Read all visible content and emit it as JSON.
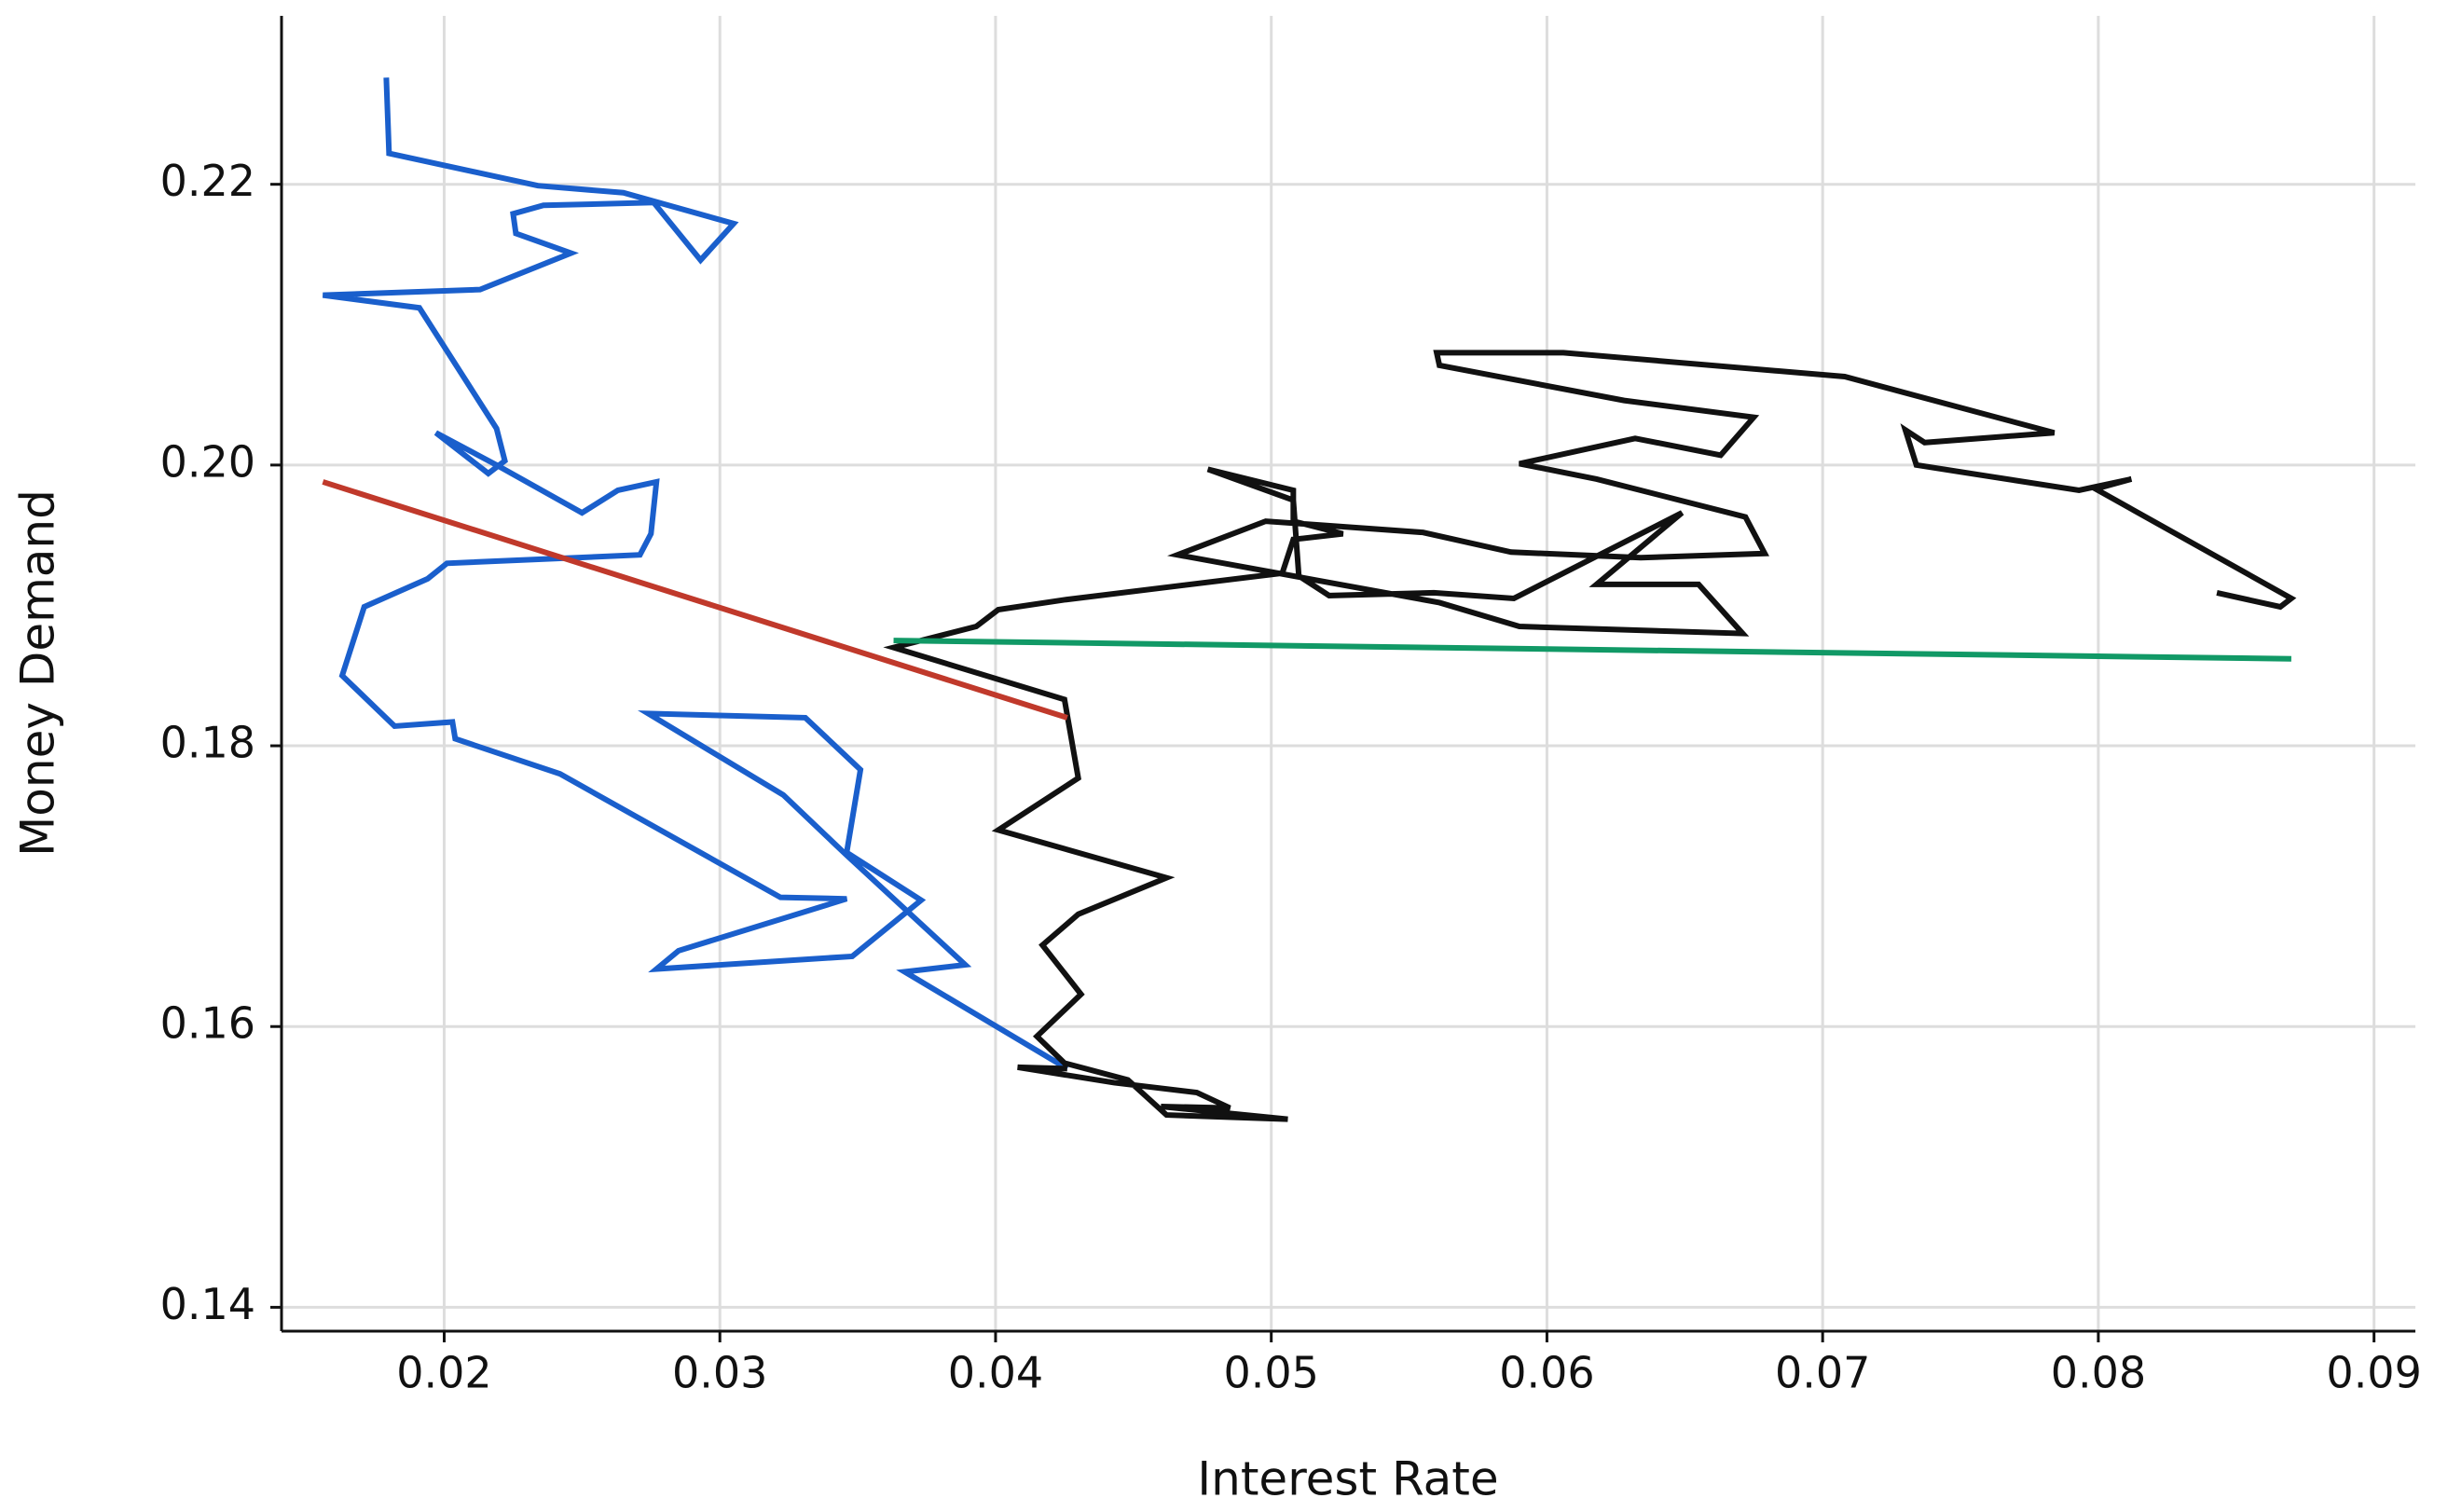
{
  "chart_data": {
    "type": "line",
    "x_label": "Interest Rate",
    "y_label": "Money Demand",
    "xlim": [
      0.0141,
      0.0915
    ],
    "ylim": [
      0.1383,
      0.232
    ],
    "xticks": [
      0.02,
      0.03,
      0.04,
      0.05,
      0.06,
      0.07,
      0.08,
      0.09
    ],
    "yticks": [
      0.14,
      0.16,
      0.18,
      {
        "value": 0.2,
        "label": "0.20"
      },
      0.22
    ],
    "grid": true,
    "series": [
      {
        "color": "#1a5fcc",
        "x": [
          0.0179,
          0.018,
          0.0234,
          0.0265,
          0.0305,
          0.0293,
          0.0276,
          0.0236,
          0.0225,
          0.0226,
          0.0246,
          0.0213,
          0.0156,
          0.0191,
          0.0219,
          0.0222,
          0.0216,
          0.0197,
          0.0219,
          0.025,
          0.0263,
          0.0277,
          0.0275,
          0.0271,
          0.0201,
          0.0194,
          0.0171,
          0.0163,
          0.0182,
          0.0203,
          0.0204,
          0.0242,
          0.0322,
          0.0346,
          0.0285,
          0.0277,
          0.0348,
          0.0373,
          0.0346,
          0.0351,
          0.0331,
          0.0274,
          0.0323,
          0.0346,
          0.0389,
          0.0367,
          0.0426
        ],
        "values": [
          0.2276,
          0.2222,
          0.2199,
          0.2194,
          0.2172,
          0.2146,
          0.2187,
          0.2185,
          0.2179,
          0.2165,
          0.2151,
          0.2125,
          0.2121,
          0.2112,
          0.2026,
          0.2003,
          0.1994,
          0.2023,
          0.2,
          0.1966,
          0.1982,
          0.1988,
          0.1951,
          0.1936,
          0.193,
          0.1919,
          0.1899,
          0.185,
          0.1814,
          0.1817,
          0.1805,
          0.178,
          0.1692,
          0.1691,
          0.1654,
          0.1641,
          0.165,
          0.169,
          0.1724,
          0.1783,
          0.182,
          0.1823,
          0.1765,
          0.1722,
          0.1644,
          0.1639,
          0.157
        ]
      },
      {
        "color": "#111111",
        "x": [
          0.0426,
          0.0408,
          0.0443,
          0.0473,
          0.0485,
          0.046,
          0.0506,
          0.0462,
          0.0448,
          0.0425,
          0.0415,
          0.0431,
          0.0417,
          0.043,
          0.0462,
          0.0401,
          0.043,
          0.0425,
          0.0363,
          0.0393,
          0.0401,
          0.0425,
          0.0504,
          0.0508,
          0.0526,
          0.0508,
          0.0508,
          0.0477,
          0.0508,
          0.051,
          0.0521,
          0.0559,
          0.0588,
          0.0649,
          0.0618,
          0.0655,
          0.0671,
          0.059,
          0.0561,
          0.0466,
          0.0498,
          0.0555,
          0.0587,
          0.0634,
          0.0679,
          0.0672,
          0.0618,
          0.059,
          0.0632,
          0.0663,
          0.0675,
          0.0628,
          0.0561,
          0.056,
          0.0606,
          0.0708,
          0.0784,
          0.0737,
          0.073,
          0.0734,
          0.0793,
          0.0812,
          0.0799,
          0.087,
          0.0866,
          0.0843
        ],
        "values": [
          0.157,
          0.1571,
          0.156,
          0.1553,
          0.1542,
          0.1543,
          0.1534,
          0.1537,
          0.1562,
          0.1574,
          0.1593,
          0.1623,
          0.1658,
          0.168,
          0.1706,
          0.174,
          0.1777,
          0.1833,
          0.187,
          0.1885,
          0.1897,
          0.1904,
          0.1923,
          0.1947,
          0.1951,
          0.196,
          0.1982,
          0.1997,
          0.1975,
          0.1921,
          0.1907,
          0.1909,
          0.1905,
          0.1966,
          0.1915,
          0.1915,
          0.188,
          0.1885,
          0.1902,
          0.1936,
          0.196,
          0.1952,
          0.1938,
          0.1934,
          0.1937,
          0.1963,
          0.199,
          0.2001,
          0.2019,
          0.2007,
          0.2034,
          0.2046,
          0.2071,
          0.208,
          0.208,
          0.2063,
          0.2023,
          0.2016,
          0.2025,
          0.2,
          0.1982,
          0.199,
          0.1983,
          0.1905,
          0.1899,
          0.1909
        ]
      },
      {
        "color": "#c0392b",
        "x": [
          0.0156,
          0.0426
        ],
        "values": [
          0.1988,
          0.182
        ]
      },
      {
        "color": "#119966",
        "x": [
          0.0363,
          0.087
        ],
        "values": [
          0.1875,
          0.1862
        ]
      }
    ]
  }
}
